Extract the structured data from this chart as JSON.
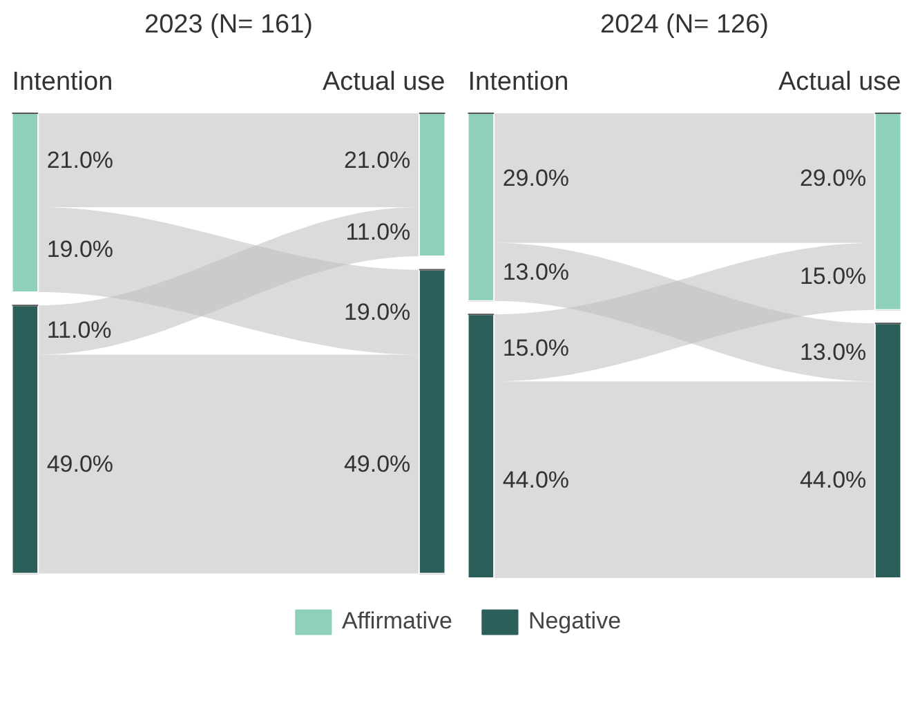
{
  "chart_data": [
    {
      "type": "other",
      "title": "2023 (N= 161)",
      "categories": [
        "Intention",
        "Actual use"
      ],
      "annotations": [
        "Affirmative",
        "Negative"
      ],
      "colors": [
        "#8fd0b9",
        "#2d5f5a"
      ],
      "series": [
        {
          "color": "#bdbdbd",
          "values": [
            21,
            19
          ],
          "value_labels": [
            "21.0%",
            "19.0%"
          ]
        },
        {
          "color": "#bdbdbd",
          "values": [
            11,
            49
          ],
          "value_labels": [
            "11.0%",
            "49.0%"
          ]
        }
      ]
    },
    {
      "type": "other",
      "title": "2024 (N= 126)",
      "categories": [
        "Intention",
        "Actual use"
      ],
      "colors": [
        "#8fd0b9",
        "#2d5f5a"
      ],
      "series": [
        {
          "color": "#bdbdbd",
          "values": [
            29,
            13
          ],
          "value_labels": [
            "29.0%",
            "13.0%"
          ]
        },
        {
          "color": "#bdbdbd",
          "values": [
            15,
            44
          ],
          "value_labels": [
            "15.0%",
            "44.0%"
          ]
        }
      ]
    }
  ]
}
